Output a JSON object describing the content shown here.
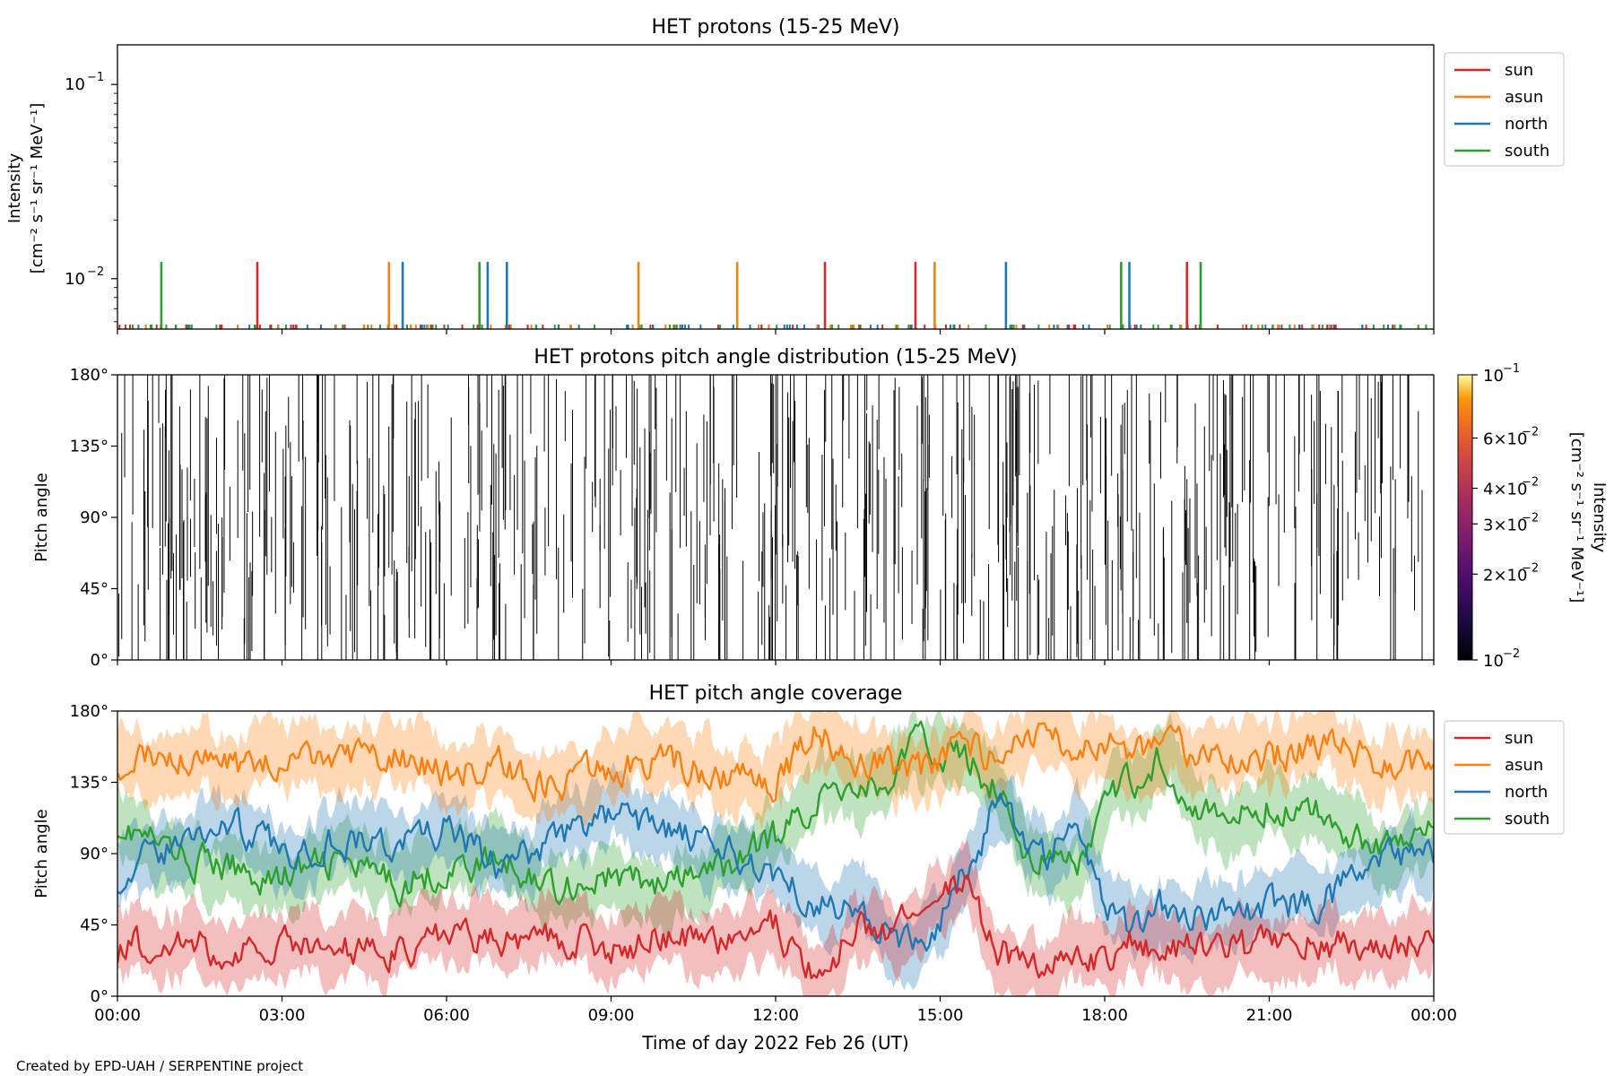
{
  "credit": "Created by EPD-UAH / SERPENTINE project",
  "xlabel": "Time of day 2022 Feb 26 (UT)",
  "x_ticks": [
    "00:00",
    "03:00",
    "06:00",
    "09:00",
    "12:00",
    "15:00",
    "18:00",
    "21:00",
    "00:00"
  ],
  "colors": {
    "sun": "#d62728",
    "asun": "#ff7f0e",
    "north": "#1f77b4",
    "south": "#2ca02c"
  },
  "chart_data": [
    {
      "type": "line",
      "title": "HET protons (15-25 MeV)",
      "ylabel": [
        "Intensity",
        "[cm⁻² s⁻¹ sr⁻¹ MeV⁻¹]"
      ],
      "yscale": "log",
      "ylim": [
        0.0055,
        0.16
      ],
      "y_ticks": [
        {
          "value": 0.1,
          "base": "10",
          "exp": "−1"
        },
        {
          "value": 0.01,
          "base": "10",
          "exp": "−2"
        }
      ],
      "x_unit": "hours",
      "xlim": [
        0,
        24
      ],
      "legend_position": "right",
      "baseline_value": 0.0058,
      "series": [
        {
          "name": "sun",
          "spikes": [
            {
              "x": 2.55,
              "y": 0.0122
            },
            {
              "x": 12.9,
              "y": 0.0122
            },
            {
              "x": 14.55,
              "y": 0.0122
            },
            {
              "x": 19.5,
              "y": 0.0122
            }
          ]
        },
        {
          "name": "asun",
          "spikes": [
            {
              "x": 4.95,
              "y": 0.0122
            },
            {
              "x": 9.5,
              "y": 0.0122
            },
            {
              "x": 11.3,
              "y": 0.0122
            },
            {
              "x": 14.9,
              "y": 0.0122
            }
          ]
        },
        {
          "name": "north",
          "spikes": [
            {
              "x": 5.2,
              "y": 0.0122
            },
            {
              "x": 6.75,
              "y": 0.0122
            },
            {
              "x": 7.1,
              "y": 0.0122
            },
            {
              "x": 16.2,
              "y": 0.0122
            },
            {
              "x": 18.45,
              "y": 0.0122
            }
          ]
        },
        {
          "name": "south",
          "spikes": [
            {
              "x": 0.8,
              "y": 0.0122
            },
            {
              "x": 6.6,
              "y": 0.0122
            },
            {
              "x": 18.3,
              "y": 0.0122
            },
            {
              "x": 19.75,
              "y": 0.0122
            }
          ]
        }
      ]
    },
    {
      "type": "heatmap",
      "title": "HET protons pitch angle distribution (15-25 MeV)",
      "ylabel": "Pitch angle",
      "ylim": [
        0,
        180
      ],
      "y_ticks": [
        "0°",
        "45°",
        "90°",
        "135°",
        "180°"
      ],
      "xlim": [
        0,
        24
      ],
      "colorbar": {
        "label": [
          "Intensity",
          "[cm⁻² s⁻¹ sr⁻¹ MeV⁻¹]"
        ],
        "scale": "log",
        "range": [
          0.01,
          0.1
        ],
        "colormap": "inferno",
        "ticks": [
          {
            "value": 0.1,
            "text": "10",
            "exp": "−1",
            "pre": ""
          },
          {
            "value": 0.06,
            "text": "6×10",
            "exp": "−2",
            "pre": ""
          },
          {
            "value": 0.04,
            "text": "4×10",
            "exp": "−2",
            "pre": ""
          },
          {
            "value": 0.03,
            "text": "3×10",
            "exp": "−2",
            "pre": ""
          },
          {
            "value": 0.02,
            "text": "2×10",
            "exp": "−2",
            "pre": ""
          },
          {
            "value": 0.01,
            "text": "10",
            "exp": "−2",
            "pre": ""
          }
        ]
      }
    },
    {
      "type": "line",
      "title": "HET pitch angle coverage",
      "ylabel": "Pitch angle",
      "ylim": [
        0,
        180
      ],
      "y_ticks": [
        "0°",
        "45°",
        "90°",
        "135°",
        "180°"
      ],
      "xlim": [
        0,
        24
      ],
      "legend_position": "right",
      "band_halfwidth_deg": 20,
      "series": [
        {
          "name": "sun",
          "x": [
            0,
            1,
            2,
            3,
            4,
            5,
            6,
            7,
            8,
            9,
            10,
            11,
            12,
            12.75,
            13.5,
            14,
            14.5,
            15,
            15.5,
            16,
            16.5,
            17,
            17.5,
            18,
            18.5,
            19,
            20,
            21,
            22,
            23,
            24
          ],
          "values": [
            30,
            35,
            28,
            32,
            30,
            28,
            40,
            35,
            40,
            30,
            38,
            35,
            45,
            10,
            45,
            40,
            50,
            60,
            70,
            30,
            20,
            15,
            30,
            20,
            35,
            30,
            28,
            30,
            35,
            25,
            40
          ]
        },
        {
          "name": "asun",
          "x": [
            0,
            1,
            2,
            3,
            4,
            5,
            6,
            7,
            8,
            9,
            10,
            11,
            12,
            12.75,
            13.5,
            14,
            14.5,
            15,
            15.5,
            16,
            16.5,
            17,
            17.5,
            18,
            18.5,
            19,
            20,
            21,
            22,
            23,
            24
          ],
          "values": [
            150,
            155,
            145,
            150,
            145,
            155,
            140,
            145,
            130,
            145,
            150,
            140,
            135,
            170,
            150,
            145,
            140,
            150,
            160,
            150,
            160,
            165,
            150,
            160,
            150,
            155,
            155,
            150,
            160,
            150,
            145
          ]
        },
        {
          "name": "north",
          "x": [
            0,
            1,
            2,
            3,
            4,
            5,
            6,
            7,
            8,
            9,
            10,
            11,
            12,
            12.75,
            13.5,
            14,
            14.5,
            15,
            15.5,
            16,
            16.5,
            17,
            17.5,
            18,
            18.5,
            19,
            20,
            21,
            22,
            23,
            24
          ],
          "values": [
            75,
            95,
            110,
            90,
            100,
            95,
            105,
            80,
            100,
            115,
            105,
            90,
            80,
            60,
            55,
            40,
            30,
            50,
            80,
            120,
            100,
            90,
            110,
            60,
            40,
            60,
            50,
            55,
            60,
            85,
            90
          ]
        },
        {
          "name": "south",
          "x": [
            0,
            1,
            2,
            3,
            4,
            5,
            6,
            7,
            8,
            9,
            10,
            11,
            12,
            12.75,
            13.5,
            14,
            14.5,
            15,
            15.5,
            16,
            16.5,
            17,
            17.5,
            18,
            18.5,
            19,
            20,
            21,
            22,
            23,
            24
          ],
          "values": [
            110,
            90,
            80,
            75,
            85,
            70,
            80,
            85,
            70,
            75,
            70,
            80,
            100,
            125,
            135,
            130,
            160,
            155,
            150,
            135,
            95,
            85,
            80,
            120,
            135,
            150,
            110,
            120,
            115,
            95,
            105
          ]
        }
      ]
    }
  ]
}
